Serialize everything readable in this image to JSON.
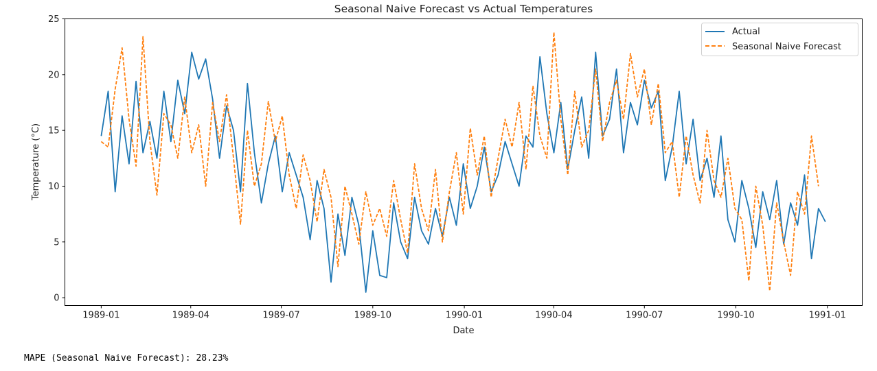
{
  "chart_data": {
    "type": "line",
    "title": "Seasonal Naive Forecast vs Actual Temperatures",
    "xlabel": "Date",
    "ylabel": "Temperature (°C)",
    "x_start": "1989-01-01",
    "x_step_days": 7,
    "xlim_days": [
      -36.5,
      765
    ],
    "ylim": [
      -0.7,
      25.0
    ],
    "x_ticks": [
      {
        "label": "1989-01",
        "day": 0
      },
      {
        "label": "1989-04",
        "day": 90
      },
      {
        "label": "1989-07",
        "day": 181
      },
      {
        "label": "1989-10",
        "day": 273
      },
      {
        "label": "1990-01",
        "day": 365
      },
      {
        "label": "1990-04",
        "day": 455
      },
      {
        "label": "1990-07",
        "day": 546
      },
      {
        "label": "1990-10",
        "day": 638
      },
      {
        "label": "1991-01",
        "day": 730
      }
    ],
    "y_ticks": [
      0,
      5,
      10,
      15,
      20,
      25
    ],
    "grid": false,
    "legend_position": "top-right",
    "series": [
      {
        "name": "Actual",
        "color": "#1f77b4",
        "style": "solid",
        "values": [
          14.5,
          18.5,
          9.5,
          16.3,
          12.0,
          19.4,
          13.0,
          15.8,
          12.5,
          18.5,
          14.0,
          19.5,
          16.5,
          22.0,
          19.6,
          21.4,
          17.8,
          12.5,
          17.2,
          15.0,
          9.5,
          19.2,
          13.0,
          8.5,
          12.0,
          14.5,
          9.5,
          13.0,
          11.0,
          9.0,
          5.2,
          10.5,
          8.0,
          1.4,
          7.5,
          3.8,
          9.0,
          6.5,
          0.5,
          6.0,
          2.0,
          1.8,
          8.5,
          5.0,
          3.5,
          9.0,
          6.0,
          4.8,
          8.0,
          5.5,
          9.0,
          6.5,
          12.0,
          8.0,
          10.0,
          13.5,
          9.5,
          11.0,
          14.0,
          12.0,
          10.0,
          14.5,
          13.5,
          21.6,
          16.5,
          13.0,
          17.5,
          11.5,
          15.0,
          18.0,
          12.5,
          22.0,
          14.5,
          16.0,
          20.5,
          13.0,
          17.5,
          15.5,
          19.5,
          17.0,
          18.5,
          10.5,
          13.5,
          18.5,
          12.0,
          16.0,
          10.5,
          12.5,
          9.0,
          14.5,
          7.0,
          5.0,
          10.5,
          8.0,
          4.5,
          9.5,
          7.0,
          10.5,
          4.8,
          8.5,
          6.5,
          11.0,
          3.5,
          8.0,
          6.8
        ]
      },
      {
        "name": "Seasonal Naive Forecast",
        "color": "#ff7f0e",
        "style": "dashed",
        "values": [
          14.0,
          13.5,
          18.7,
          22.4,
          16.0,
          11.8,
          23.4,
          14.0,
          9.2,
          16.5,
          15.5,
          12.5,
          18.0,
          13.0,
          15.5,
          10.0,
          17.5,
          14.0,
          18.2,
          12.5,
          6.6,
          15.0,
          10.0,
          12.0,
          17.6,
          14.0,
          16.3,
          11.0,
          8.0,
          12.8,
          10.5,
          6.8,
          11.5,
          9.0,
          2.8,
          10.0,
          7.5,
          4.8,
          9.5,
          6.5,
          8.0,
          5.5,
          10.5,
          7.0,
          4.0,
          12.0,
          8.0,
          6.0,
          11.5,
          5.0,
          9.5,
          13.0,
          7.5,
          15.2,
          11.0,
          14.5,
          9.0,
          12.5,
          16.0,
          13.5,
          17.5,
          11.5,
          19.0,
          14.5,
          12.5,
          23.8,
          16.0,
          11.0,
          18.5,
          13.5,
          15.0,
          20.5,
          14.0,
          17.5,
          19.5,
          16.0,
          21.9,
          18.0,
          20.5,
          15.5,
          19.2,
          13.0,
          14.0,
          9.0,
          14.5,
          11.0,
          8.5,
          15.0,
          10.5,
          9.0,
          12.5,
          8.0,
          7.0,
          1.5,
          10.0,
          6.5,
          0.6,
          8.5,
          5.0,
          2.0,
          9.5,
          7.5,
          14.5,
          10.0
        ]
      }
    ]
  },
  "footer": {
    "mape_text": "MAPE (Seasonal Naive Forecast): 28.23%"
  }
}
